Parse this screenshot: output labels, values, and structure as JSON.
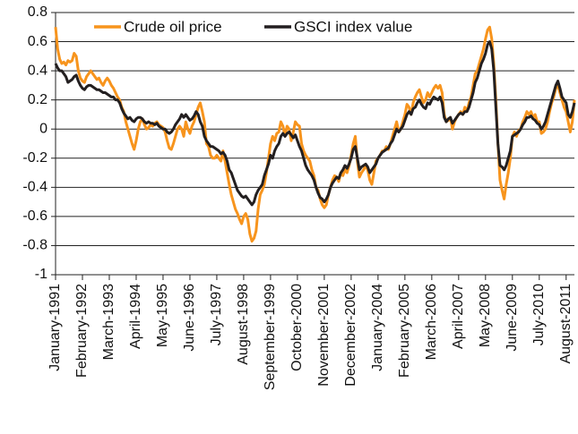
{
  "chart_data": {
    "type": "line",
    "legend": "top",
    "ylim": [
      -1,
      0.8
    ],
    "yticks": [
      0.8,
      0.6,
      0.4,
      0.2,
      0,
      -0.2,
      -0.4,
      -0.6,
      -0.8,
      -1
    ],
    "grid": true,
    "categories": [
      "January-1991",
      null,
      null,
      null,
      null,
      null,
      null,
      null,
      null,
      null,
      null,
      null,
      null,
      "February-1992",
      null,
      null,
      null,
      null,
      null,
      null,
      null,
      null,
      null,
      null,
      null,
      null,
      "March-1993",
      null,
      null,
      null,
      null,
      null,
      null,
      null,
      null,
      null,
      null,
      null,
      null,
      "April-1994",
      null,
      null,
      null,
      null,
      null,
      null,
      null,
      null,
      null,
      null,
      null,
      null,
      "May-1995",
      null,
      null,
      null,
      null,
      null,
      null,
      null,
      null,
      null,
      null,
      null,
      null,
      "June-1996",
      null,
      null,
      null,
      null,
      null,
      null,
      null,
      null,
      null,
      null,
      null,
      null,
      "July-1997",
      null,
      null,
      null,
      null,
      null,
      null,
      null,
      null,
      null,
      null,
      null,
      null,
      "August-1998",
      null,
      null,
      null,
      null,
      null,
      null,
      null,
      null,
      null,
      null,
      null,
      null,
      "September-1999",
      null,
      null,
      null,
      null,
      null,
      null,
      null,
      null,
      null,
      null,
      null,
      null,
      "October-2000",
      null,
      null,
      null,
      null,
      null,
      null,
      null,
      null,
      null,
      null,
      null,
      null,
      "November-2001",
      null,
      null,
      null,
      null,
      null,
      null,
      null,
      null,
      null,
      null,
      null,
      null,
      "December-2002",
      null,
      null,
      null,
      null,
      null,
      null,
      null,
      null,
      null,
      null,
      null,
      null,
      "January-2004",
      null,
      null,
      null,
      null,
      null,
      null,
      null,
      null,
      null,
      null,
      null,
      null,
      "February-2005",
      null,
      null,
      null,
      null,
      null,
      null,
      null,
      null,
      null,
      null,
      null,
      null,
      "March-2006",
      null,
      null,
      null,
      null,
      null,
      null,
      null,
      null,
      null,
      null,
      null,
      null,
      "April-2007",
      null,
      null,
      null,
      null,
      null,
      null,
      null,
      null,
      null,
      null,
      null,
      null,
      "May-2008",
      null,
      null,
      null,
      null,
      null,
      null,
      null,
      null,
      null,
      null,
      null,
      null,
      "June-2009",
      null,
      null,
      null,
      null,
      null,
      null,
      null,
      null,
      null,
      null,
      null,
      null,
      "July-2010",
      null,
      null,
      null,
      null,
      null,
      null,
      null,
      null,
      null,
      null,
      null,
      null,
      "August-2011",
      null,
      null,
      null,
      null
    ],
    "series": [
      {
        "name": "Crude oil price",
        "color": "#f7941d",
        "values": [
          0.7,
          0.55,
          0.48,
          0.45,
          0.46,
          0.44,
          0.47,
          0.46,
          0.47,
          0.52,
          0.5,
          0.4,
          0.35,
          0.33,
          0.32,
          0.36,
          0.38,
          0.4,
          0.38,
          0.36,
          0.34,
          0.35,
          0.32,
          0.3,
          0.33,
          0.35,
          0.33,
          0.3,
          0.28,
          0.25,
          0.22,
          0.2,
          0.15,
          0.12,
          0.05,
          0.0,
          -0.05,
          -0.1,
          -0.14,
          -0.08,
          0.0,
          0.05,
          0.07,
          0.03,
          0.0,
          0.01,
          0.03,
          0.02,
          0.04,
          0.05,
          0.03,
          0.02,
          0.01,
          -0.02,
          -0.08,
          -0.13,
          -0.14,
          -0.1,
          -0.05,
          0.0,
          0.02,
          0.0,
          -0.05,
          0.05,
          0.0,
          -0.03,
          0.02,
          0.05,
          0.1,
          0.15,
          0.18,
          0.12,
          0.05,
          -0.1,
          -0.12,
          -0.18,
          -0.2,
          -0.2,
          -0.18,
          -0.2,
          -0.22,
          -0.15,
          -0.22,
          -0.3,
          -0.38,
          -0.45,
          -0.5,
          -0.55,
          -0.58,
          -0.62,
          -0.65,
          -0.6,
          -0.58,
          -0.62,
          -0.72,
          -0.77,
          -0.75,
          -0.7,
          -0.55,
          -0.45,
          -0.42,
          -0.38,
          -0.3,
          -0.2,
          -0.1,
          -0.05,
          -0.08,
          -0.03,
          -0.02,
          0.05,
          0.02,
          -0.05,
          0.02,
          0.0,
          -0.08,
          -0.02,
          0.05,
          0.03,
          0.02,
          -0.1,
          -0.15,
          -0.18,
          -0.2,
          -0.22,
          -0.28,
          -0.32,
          -0.4,
          -0.42,
          -0.48,
          -0.52,
          -0.54,
          -0.52,
          -0.45,
          -0.4,
          -0.35,
          -0.32,
          -0.33,
          -0.36,
          -0.3,
          -0.32,
          -0.28,
          -0.3,
          -0.25,
          -0.18,
          -0.1,
          -0.05,
          -0.22,
          -0.33,
          -0.3,
          -0.28,
          -0.25,
          -0.28,
          -0.35,
          -0.38,
          -0.3,
          -0.22,
          -0.2,
          -0.18,
          -0.15,
          -0.15,
          -0.12,
          -0.14,
          -0.1,
          -0.05,
          0.0,
          0.05,
          -0.02,
          0.0,
          0.05,
          0.1,
          0.17,
          0.15,
          0.1,
          0.18,
          0.22,
          0.25,
          0.27,
          0.22,
          0.18,
          0.2,
          0.25,
          0.22,
          0.25,
          0.28,
          0.3,
          0.28,
          0.3,
          0.25,
          0.1,
          0.05,
          0.06,
          0.08,
          0.0,
          0.05,
          0.08,
          0.1,
          0.12,
          0.1,
          0.15,
          0.12,
          0.18,
          0.22,
          0.3,
          0.38,
          0.4,
          0.45,
          0.5,
          0.55,
          0.62,
          0.68,
          0.7,
          0.62,
          0.45,
          0.2,
          -0.1,
          -0.35,
          -0.42,
          -0.48,
          -0.38,
          -0.3,
          -0.2,
          -0.05,
          -0.02,
          -0.05,
          -0.01,
          0.0,
          0.05,
          0.08,
          0.12,
          0.1,
          0.12,
          0.08,
          0.1,
          0.05,
          0.05,
          -0.03,
          -0.02,
          0.0,
          0.05,
          0.12,
          0.18,
          0.22,
          0.28,
          0.3,
          0.25,
          0.2,
          0.15,
          0.12,
          0.05,
          -0.02,
          0.05,
          0.2
        ]
      },
      {
        "name": "GSCI index value",
        "color": "#231f20",
        "values": [
          0.45,
          0.42,
          0.4,
          0.4,
          0.38,
          0.36,
          0.32,
          0.33,
          0.34,
          0.36,
          0.37,
          0.33,
          0.3,
          0.28,
          0.27,
          0.29,
          0.3,
          0.3,
          0.29,
          0.28,
          0.27,
          0.27,
          0.26,
          0.25,
          0.25,
          0.24,
          0.23,
          0.22,
          0.22,
          0.2,
          0.2,
          0.18,
          0.14,
          0.11,
          0.09,
          0.07,
          0.08,
          0.06,
          0.05,
          0.07,
          0.08,
          0.08,
          0.07,
          0.05,
          0.04,
          0.05,
          0.04,
          0.04,
          0.03,
          0.04,
          0.02,
          0.01,
          0.0,
          0.0,
          -0.02,
          -0.03,
          -0.02,
          0.0,
          0.03,
          0.05,
          0.07,
          0.1,
          0.08,
          0.1,
          0.08,
          0.06,
          0.07,
          0.09,
          0.12,
          0.1,
          0.05,
          0.02,
          -0.05,
          -0.08,
          -0.1,
          -0.12,
          -0.12,
          -0.13,
          -0.14,
          -0.15,
          -0.17,
          -0.16,
          -0.18,
          -0.22,
          -0.28,
          -0.3,
          -0.34,
          -0.38,
          -0.42,
          -0.44,
          -0.46,
          -0.47,
          -0.46,
          -0.48,
          -0.5,
          -0.52,
          -0.5,
          -0.45,
          -0.42,
          -0.4,
          -0.38,
          -0.32,
          -0.28,
          -0.24,
          -0.18,
          -0.2,
          -0.15,
          -0.12,
          -0.1,
          -0.05,
          -0.03,
          -0.05,
          -0.03,
          -0.02,
          -0.04,
          -0.06,
          -0.04,
          -0.08,
          -0.12,
          -0.15,
          -0.2,
          -0.25,
          -0.28,
          -0.3,
          -0.32,
          -0.35,
          -0.4,
          -0.44,
          -0.47,
          -0.48,
          -0.5,
          -0.48,
          -0.45,
          -0.4,
          -0.37,
          -0.35,
          -0.33,
          -0.34,
          -0.3,
          -0.28,
          -0.25,
          -0.27,
          -0.24,
          -0.2,
          -0.14,
          -0.12,
          -0.2,
          -0.28,
          -0.26,
          -0.25,
          -0.24,
          -0.26,
          -0.3,
          -0.28,
          -0.26,
          -0.24,
          -0.2,
          -0.18,
          -0.16,
          -0.15,
          -0.14,
          -0.13,
          -0.1,
          -0.08,
          -0.04,
          0.0,
          -0.02,
          0.0,
          0.02,
          0.06,
          0.1,
          0.12,
          0.1,
          0.14,
          0.15,
          0.18,
          0.2,
          0.17,
          0.15,
          0.14,
          0.18,
          0.17,
          0.2,
          0.22,
          0.21,
          0.2,
          0.22,
          0.18,
          0.08,
          0.05,
          0.07,
          0.08,
          0.04,
          0.06,
          0.08,
          0.1,
          0.11,
          0.1,
          0.12,
          0.12,
          0.15,
          0.2,
          0.25,
          0.32,
          0.35,
          0.4,
          0.45,
          0.48,
          0.52,
          0.58,
          0.6,
          0.55,
          0.4,
          0.15,
          -0.1,
          -0.25,
          -0.26,
          -0.28,
          -0.25,
          -0.2,
          -0.15,
          -0.05,
          -0.04,
          -0.03,
          -0.02,
          0.0,
          0.03,
          0.05,
          0.08,
          0.08,
          0.09,
          0.07,
          0.06,
          0.04,
          0.03,
          0.0,
          0.02,
          0.05,
          0.1,
          0.15,
          0.2,
          0.25,
          0.3,
          0.33,
          0.28,
          0.22,
          0.2,
          0.18,
          0.1,
          0.08,
          0.12,
          0.18
        ]
      }
    ]
  }
}
